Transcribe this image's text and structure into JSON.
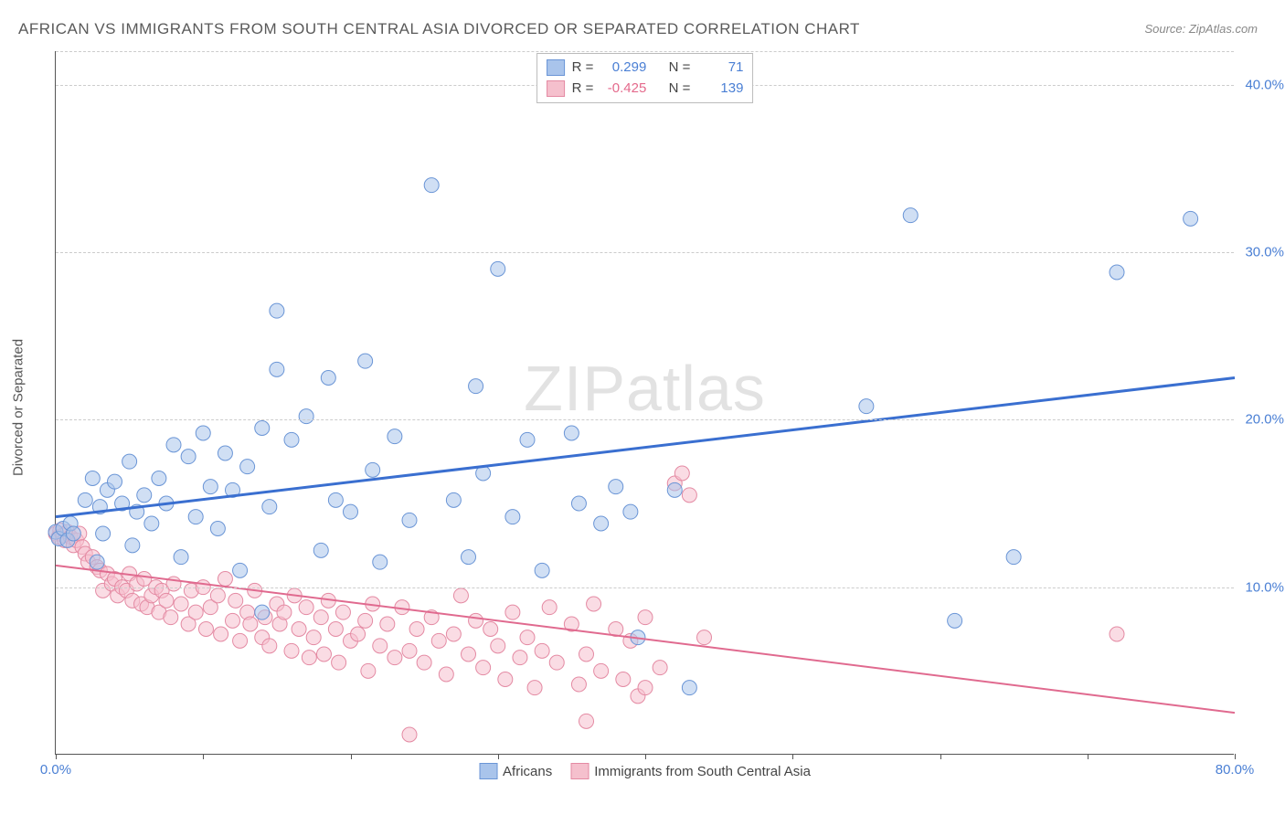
{
  "title": "AFRICAN VS IMMIGRANTS FROM SOUTH CENTRAL ASIA DIVORCED OR SEPARATED CORRELATION CHART",
  "source": "Source: ZipAtlas.com",
  "watermark": "ZIPatlas",
  "ylabel": "Divorced or Separated",
  "chart": {
    "type": "scatter",
    "xlim": [
      0,
      80
    ],
    "ylim": [
      0,
      42
    ],
    "yticks": [
      {
        "v": 10,
        "label": "10.0%"
      },
      {
        "v": 20,
        "label": "20.0%"
      },
      {
        "v": 30,
        "label": "30.0%"
      },
      {
        "v": 40,
        "label": "40.0%"
      }
    ],
    "xticks": [
      {
        "v": 0,
        "label": "0.0%"
      },
      {
        "v": 10
      },
      {
        "v": 20
      },
      {
        "v": 30
      },
      {
        "v": 40
      },
      {
        "v": 50
      },
      {
        "v": 60
      },
      {
        "v": 70
      },
      {
        "v": 80,
        "label": "80.0%"
      }
    ],
    "background_color": "#ffffff",
    "grid_color": "#cccccc",
    "axis_color": "#555555",
    "marker_radius": 8,
    "marker_opacity": 0.55,
    "series": {
      "africans": {
        "label": "Africans",
        "fill": "#a9c4eb",
        "stroke": "#6a95d6",
        "line_color": "#3a6fd0",
        "R": "0.299",
        "N": "71",
        "trend": {
          "x1": 0,
          "y1": 14.2,
          "x2": 80,
          "y2": 22.5
        },
        "points": [
          [
            0,
            13.3
          ],
          [
            0.2,
            12.9
          ],
          [
            0.5,
            13.5
          ],
          [
            0.8,
            12.8
          ],
          [
            1,
            13.8
          ],
          [
            1.2,
            13.2
          ],
          [
            2,
            15.2
          ],
          [
            2.5,
            16.5
          ],
          [
            2.8,
            11.5
          ],
          [
            3,
            14.8
          ],
          [
            3.2,
            13.2
          ],
          [
            3.5,
            15.8
          ],
          [
            4,
            16.3
          ],
          [
            4.5,
            15.0
          ],
          [
            5,
            17.5
          ],
          [
            5.2,
            12.5
          ],
          [
            5.5,
            14.5
          ],
          [
            6,
            15.5
          ],
          [
            6.5,
            13.8
          ],
          [
            7,
            16.5
          ],
          [
            7.5,
            15.0
          ],
          [
            8,
            18.5
          ],
          [
            8.5,
            11.8
          ],
          [
            9,
            17.8
          ],
          [
            9.5,
            14.2
          ],
          [
            10,
            19.2
          ],
          [
            10.5,
            16.0
          ],
          [
            11,
            13.5
          ],
          [
            11.5,
            18.0
          ],
          [
            12,
            15.8
          ],
          [
            12.5,
            11.0
          ],
          [
            13,
            17.2
          ],
          [
            14,
            19.5
          ],
          [
            14,
            8.5
          ],
          [
            14.5,
            14.8
          ],
          [
            15,
            23.0
          ],
          [
            15,
            26.5
          ],
          [
            16,
            18.8
          ],
          [
            17,
            20.2
          ],
          [
            18,
            12.2
          ],
          [
            18.5,
            22.5
          ],
          [
            19,
            15.2
          ],
          [
            20,
            14.5
          ],
          [
            21,
            23.5
          ],
          [
            21.5,
            17.0
          ],
          [
            22,
            11.5
          ],
          [
            23,
            19.0
          ],
          [
            24,
            14.0
          ],
          [
            25.5,
            34.0
          ],
          [
            27,
            15.2
          ],
          [
            28,
            11.8
          ],
          [
            28.5,
            22.0
          ],
          [
            29,
            16.8
          ],
          [
            30,
            29.0
          ],
          [
            31,
            14.2
          ],
          [
            32,
            18.8
          ],
          [
            33,
            11.0
          ],
          [
            35,
            19.2
          ],
          [
            35.5,
            15.0
          ],
          [
            37,
            13.8
          ],
          [
            38,
            16.0
          ],
          [
            39,
            14.5
          ],
          [
            39.5,
            7.0
          ],
          [
            42,
            15.8
          ],
          [
            43,
            4.0
          ],
          [
            55,
            20.8
          ],
          [
            58,
            32.2
          ],
          [
            61,
            8.0
          ],
          [
            65,
            11.8
          ],
          [
            72,
            28.8
          ],
          [
            77,
            32.0
          ]
        ]
      },
      "immigrants": {
        "label": "Immigrants from South Central Asia",
        "fill": "#f5c0cd",
        "stroke": "#e48aa3",
        "line_color": "#e06a8f",
        "R": "-0.425",
        "N": "139",
        "trend": {
          "x1": 0,
          "y1": 11.3,
          "x2": 80,
          "y2": 2.5
        },
        "points": [
          [
            0,
            13.2
          ],
          [
            0.2,
            13.0
          ],
          [
            0.3,
            13.4
          ],
          [
            0.5,
            13.1
          ],
          [
            0.6,
            12.8
          ],
          [
            0.8,
            13.3
          ],
          [
            1,
            13.0
          ],
          [
            1.2,
            12.5
          ],
          [
            1.4,
            12.8
          ],
          [
            1.6,
            13.2
          ],
          [
            1.8,
            12.4
          ],
          [
            2,
            12.0
          ],
          [
            2.2,
            11.5
          ],
          [
            2.5,
            11.8
          ],
          [
            2.8,
            11.2
          ],
          [
            3,
            11.0
          ],
          [
            3.2,
            9.8
          ],
          [
            3.5,
            10.8
          ],
          [
            3.8,
            10.2
          ],
          [
            4,
            10.5
          ],
          [
            4.2,
            9.5
          ],
          [
            4.5,
            10.0
          ],
          [
            4.8,
            9.8
          ],
          [
            5,
            10.8
          ],
          [
            5.2,
            9.2
          ],
          [
            5.5,
            10.2
          ],
          [
            5.8,
            9.0
          ],
          [
            6,
            10.5
          ],
          [
            6.2,
            8.8
          ],
          [
            6.5,
            9.5
          ],
          [
            6.8,
            10.0
          ],
          [
            7,
            8.5
          ],
          [
            7.2,
            9.8
          ],
          [
            7.5,
            9.2
          ],
          [
            7.8,
            8.2
          ],
          [
            8,
            10.2
          ],
          [
            8.5,
            9.0
          ],
          [
            9,
            7.8
          ],
          [
            9.2,
            9.8
          ],
          [
            9.5,
            8.5
          ],
          [
            10,
            10.0
          ],
          [
            10.2,
            7.5
          ],
          [
            10.5,
            8.8
          ],
          [
            11,
            9.5
          ],
          [
            11.2,
            7.2
          ],
          [
            11.5,
            10.5
          ],
          [
            12,
            8.0
          ],
          [
            12.2,
            9.2
          ],
          [
            12.5,
            6.8
          ],
          [
            13,
            8.5
          ],
          [
            13.2,
            7.8
          ],
          [
            13.5,
            9.8
          ],
          [
            14,
            7.0
          ],
          [
            14.2,
            8.2
          ],
          [
            14.5,
            6.5
          ],
          [
            15,
            9.0
          ],
          [
            15.2,
            7.8
          ],
          [
            15.5,
            8.5
          ],
          [
            16,
            6.2
          ],
          [
            16.2,
            9.5
          ],
          [
            16.5,
            7.5
          ],
          [
            17,
            8.8
          ],
          [
            17.2,
            5.8
          ],
          [
            17.5,
            7.0
          ],
          [
            18,
            8.2
          ],
          [
            18.2,
            6.0
          ],
          [
            18.5,
            9.2
          ],
          [
            19,
            7.5
          ],
          [
            19.2,
            5.5
          ],
          [
            19.5,
            8.5
          ],
          [
            20,
            6.8
          ],
          [
            20.5,
            7.2
          ],
          [
            21,
            8.0
          ],
          [
            21.2,
            5.0
          ],
          [
            21.5,
            9.0
          ],
          [
            22,
            6.5
          ],
          [
            22.5,
            7.8
          ],
          [
            23,
            5.8
          ],
          [
            23.5,
            8.8
          ],
          [
            24,
            6.2
          ],
          [
            24,
            1.2
          ],
          [
            24.5,
            7.5
          ],
          [
            25,
            5.5
          ],
          [
            25.5,
            8.2
          ],
          [
            26,
            6.8
          ],
          [
            26.5,
            4.8
          ],
          [
            27,
            7.2
          ],
          [
            27.5,
            9.5
          ],
          [
            28,
            6.0
          ],
          [
            28.5,
            8.0
          ],
          [
            29,
            5.2
          ],
          [
            29.5,
            7.5
          ],
          [
            30,
            6.5
          ],
          [
            30.5,
            4.5
          ],
          [
            31,
            8.5
          ],
          [
            31.5,
            5.8
          ],
          [
            32,
            7.0
          ],
          [
            32.5,
            4.0
          ],
          [
            33,
            6.2
          ],
          [
            33.5,
            8.8
          ],
          [
            34,
            5.5
          ],
          [
            35,
            7.8
          ],
          [
            35.5,
            4.2
          ],
          [
            36,
            6.0
          ],
          [
            36,
            2.0
          ],
          [
            36.5,
            9.0
          ],
          [
            37,
            5.0
          ],
          [
            38,
            7.5
          ],
          [
            38.5,
            4.5
          ],
          [
            39,
            6.8
          ],
          [
            39.5,
            3.5
          ],
          [
            40,
            8.2
          ],
          [
            40,
            4.0
          ],
          [
            41,
            5.2
          ],
          [
            42,
            16.2
          ],
          [
            42.5,
            16.8
          ],
          [
            43,
            15.5
          ],
          [
            44,
            7.0
          ],
          [
            72,
            7.2
          ]
        ]
      }
    }
  },
  "top_legend": {
    "r_label": "R =",
    "n_label": "N ="
  }
}
